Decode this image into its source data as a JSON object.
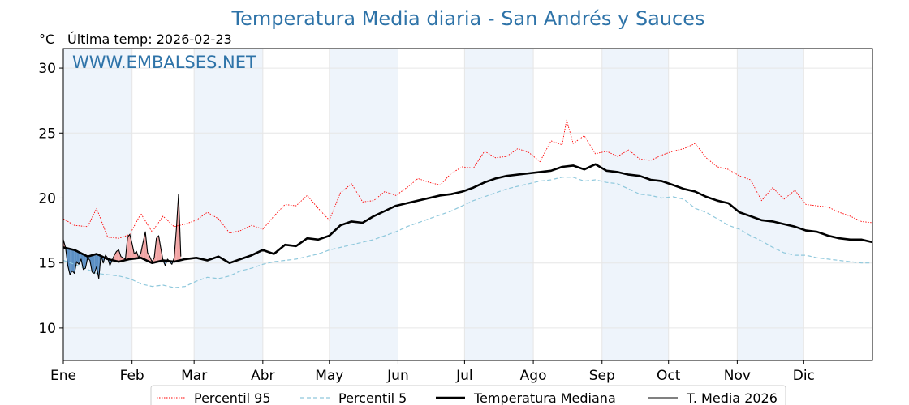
{
  "chart_data": {
    "type": "line",
    "title": "Temperatura Media diaria - San Andrés y Sauces",
    "unit_label": "°C",
    "last_temp_label": "Última temp: 2026-02-23",
    "watermark": "WWW.EMBALSES.NET",
    "xaxis": {
      "months": [
        "Ene",
        "Feb",
        "Mar",
        "Abr",
        "May",
        "Jun",
        "Jul",
        "Ago",
        "Sep",
        "Oct",
        "Nov",
        "Dic"
      ],
      "month_start_days": [
        1,
        32,
        60,
        91,
        121,
        152,
        182,
        213,
        244,
        274,
        305,
        335
      ],
      "xlim": [
        1,
        366
      ]
    },
    "yaxis": {
      "ylim": [
        7.5,
        31.5
      ],
      "ticks": [
        10,
        15,
        20,
        25,
        30
      ]
    },
    "grid": true,
    "legend_position": "bottom-center",
    "colors": {
      "p95": "#ff0000",
      "p5": "#8fc8dc",
      "median": "#000000",
      "current": "#000000",
      "above_fill": "#f2a5a5",
      "below_fill": "#5b8fc4",
      "month_shade": "#eef4fb"
    },
    "series": [
      {
        "key": "p95",
        "name": "Percentil 95",
        "style": "dotted",
        "x": [
          1,
          6,
          12,
          16,
          21,
          26,
          31,
          36,
          41,
          46,
          51,
          56,
          61,
          66,
          71,
          76,
          81,
          86,
          91,
          96,
          101,
          106,
          111,
          116,
          121,
          126,
          131,
          136,
          141,
          146,
          151,
          156,
          161,
          166,
          171,
          176,
          181,
          186,
          191,
          196,
          201,
          206,
          211,
          216,
          221,
          226,
          228,
          231,
          236,
          241,
          246,
          251,
          256,
          261,
          266,
          271,
          276,
          281,
          286,
          291,
          296,
          301,
          306,
          311,
          316,
          321,
          326,
          331,
          336,
          341,
          346,
          351,
          356,
          361,
          366
        ],
        "values": [
          18.4,
          17.9,
          17.8,
          19.2,
          17.0,
          16.9,
          17.2,
          18.8,
          17.4,
          18.6,
          17.8,
          18.0,
          18.3,
          18.9,
          18.4,
          17.3,
          17.5,
          17.9,
          17.6,
          18.6,
          19.5,
          19.4,
          20.2,
          19.2,
          18.3,
          20.4,
          21.1,
          19.7,
          19.8,
          20.5,
          20.2,
          20.8,
          21.5,
          21.2,
          21.0,
          21.9,
          22.4,
          22.3,
          23.6,
          23.1,
          23.2,
          23.8,
          23.5,
          22.8,
          24.4,
          24.1,
          26.0,
          24.2,
          24.8,
          23.4,
          23.6,
          23.2,
          23.7,
          23.0,
          22.9,
          23.3,
          23.6,
          23.8,
          24.2,
          23.1,
          22.4,
          22.2,
          21.7,
          21.4,
          19.8,
          20.8,
          19.9,
          20.6,
          19.5,
          19.4,
          19.3,
          18.9,
          18.6,
          18.2,
          18.1
        ]
      },
      {
        "key": "p5",
        "name": "Percentil 5",
        "style": "dashed",
        "x": [
          1,
          6,
          12,
          16,
          21,
          26,
          31,
          36,
          41,
          46,
          51,
          56,
          61,
          66,
          71,
          76,
          81,
          86,
          91,
          96,
          101,
          106,
          111,
          116,
          121,
          126,
          131,
          136,
          141,
          146,
          151,
          156,
          161,
          166,
          171,
          176,
          181,
          186,
          191,
          196,
          201,
          206,
          211,
          216,
          221,
          226,
          231,
          236,
          241,
          246,
          251,
          256,
          261,
          266,
          271,
          276,
          281,
          286,
          291,
          296,
          301,
          306,
          311,
          316,
          321,
          326,
          331,
          336,
          341,
          346,
          351,
          356,
          361,
          366
        ],
        "values": [
          15.2,
          14.9,
          14.5,
          14.2,
          14.1,
          14.0,
          13.8,
          13.4,
          13.2,
          13.3,
          13.1,
          13.2,
          13.6,
          13.9,
          13.8,
          14.0,
          14.4,
          14.6,
          14.9,
          15.1,
          15.2,
          15.3,
          15.5,
          15.7,
          16.0,
          16.2,
          16.4,
          16.6,
          16.8,
          17.1,
          17.4,
          17.8,
          18.1,
          18.4,
          18.7,
          19.0,
          19.4,
          19.8,
          20.1,
          20.4,
          20.7,
          20.9,
          21.1,
          21.3,
          21.4,
          21.6,
          21.6,
          21.3,
          21.4,
          21.2,
          21.1,
          20.7,
          20.3,
          20.2,
          20.0,
          20.1,
          19.9,
          19.2,
          18.9,
          18.4,
          17.9,
          17.6,
          17.1,
          16.7,
          16.2,
          15.8,
          15.6,
          15.6,
          15.4,
          15.3,
          15.2,
          15.1,
          15.0,
          15.0
        ]
      },
      {
        "key": "median",
        "name": "Temperatura Mediana",
        "style": "thick",
        "x": [
          1,
          6,
          12,
          16,
          21,
          26,
          31,
          36,
          41,
          46,
          51,
          56,
          61,
          66,
          71,
          76,
          81,
          86,
          91,
          96,
          101,
          106,
          111,
          116,
          121,
          126,
          131,
          136,
          141,
          146,
          151,
          156,
          161,
          166,
          171,
          176,
          181,
          186,
          191,
          196,
          201,
          206,
          211,
          216,
          221,
          226,
          231,
          236,
          241,
          246,
          251,
          256,
          261,
          266,
          271,
          276,
          281,
          286,
          291,
          296,
          301,
          306,
          311,
          316,
          321,
          326,
          331,
          336,
          341,
          346,
          351,
          356,
          361,
          366
        ],
        "values": [
          16.2,
          16.0,
          15.5,
          15.7,
          15.3,
          15.1,
          15.3,
          15.4,
          15.0,
          15.2,
          15.1,
          15.3,
          15.4,
          15.2,
          15.5,
          15.0,
          15.3,
          15.6,
          16.0,
          15.7,
          16.4,
          16.3,
          16.9,
          16.8,
          17.1,
          17.9,
          18.2,
          18.1,
          18.6,
          19.0,
          19.4,
          19.6,
          19.8,
          20.0,
          20.2,
          20.3,
          20.5,
          20.8,
          21.2,
          21.5,
          21.7,
          21.8,
          21.9,
          22.0,
          22.1,
          22.4,
          22.5,
          22.2,
          22.6,
          22.1,
          22.0,
          21.8,
          21.7,
          21.4,
          21.3,
          21.0,
          20.7,
          20.5,
          20.1,
          19.8,
          19.6,
          18.9,
          18.6,
          18.3,
          18.2,
          18.0,
          17.8,
          17.5,
          17.4,
          17.1,
          16.9,
          16.8,
          16.8,
          16.6
        ]
      },
      {
        "key": "current",
        "name": "T. Media 2026",
        "style": "thin",
        "x": [
          1,
          2,
          3,
          4,
          5,
          6,
          7,
          8,
          9,
          10,
          11,
          12,
          13,
          14,
          15,
          16,
          17,
          18,
          19,
          20,
          21,
          22,
          23,
          24,
          25,
          26,
          27,
          28,
          29,
          30,
          31,
          32,
          33,
          34,
          35,
          36,
          37,
          38,
          39,
          40,
          41,
          42,
          43,
          44,
          45,
          46,
          47,
          48,
          49,
          50,
          51,
          52,
          53,
          54
        ],
        "values": [
          16.8,
          16.2,
          14.8,
          14.1,
          14.4,
          14.2,
          15.1,
          14.9,
          15.3,
          14.5,
          14.6,
          15.4,
          15.2,
          14.3,
          14.2,
          14.7,
          13.8,
          15.6,
          15.0,
          15.6,
          15.4,
          14.8,
          15.2,
          15.6,
          15.9,
          16.0,
          15.5,
          15.4,
          15.3,
          17.0,
          17.2,
          16.5,
          15.7,
          15.9,
          15.4,
          15.8,
          16.6,
          17.4,
          15.8,
          15.5,
          15.1,
          15.4,
          16.9,
          17.1,
          16.1,
          15.2,
          14.8,
          15.3,
          15.1,
          14.9,
          15.4,
          17.6,
          20.3,
          15.5
        ]
      }
    ]
  }
}
